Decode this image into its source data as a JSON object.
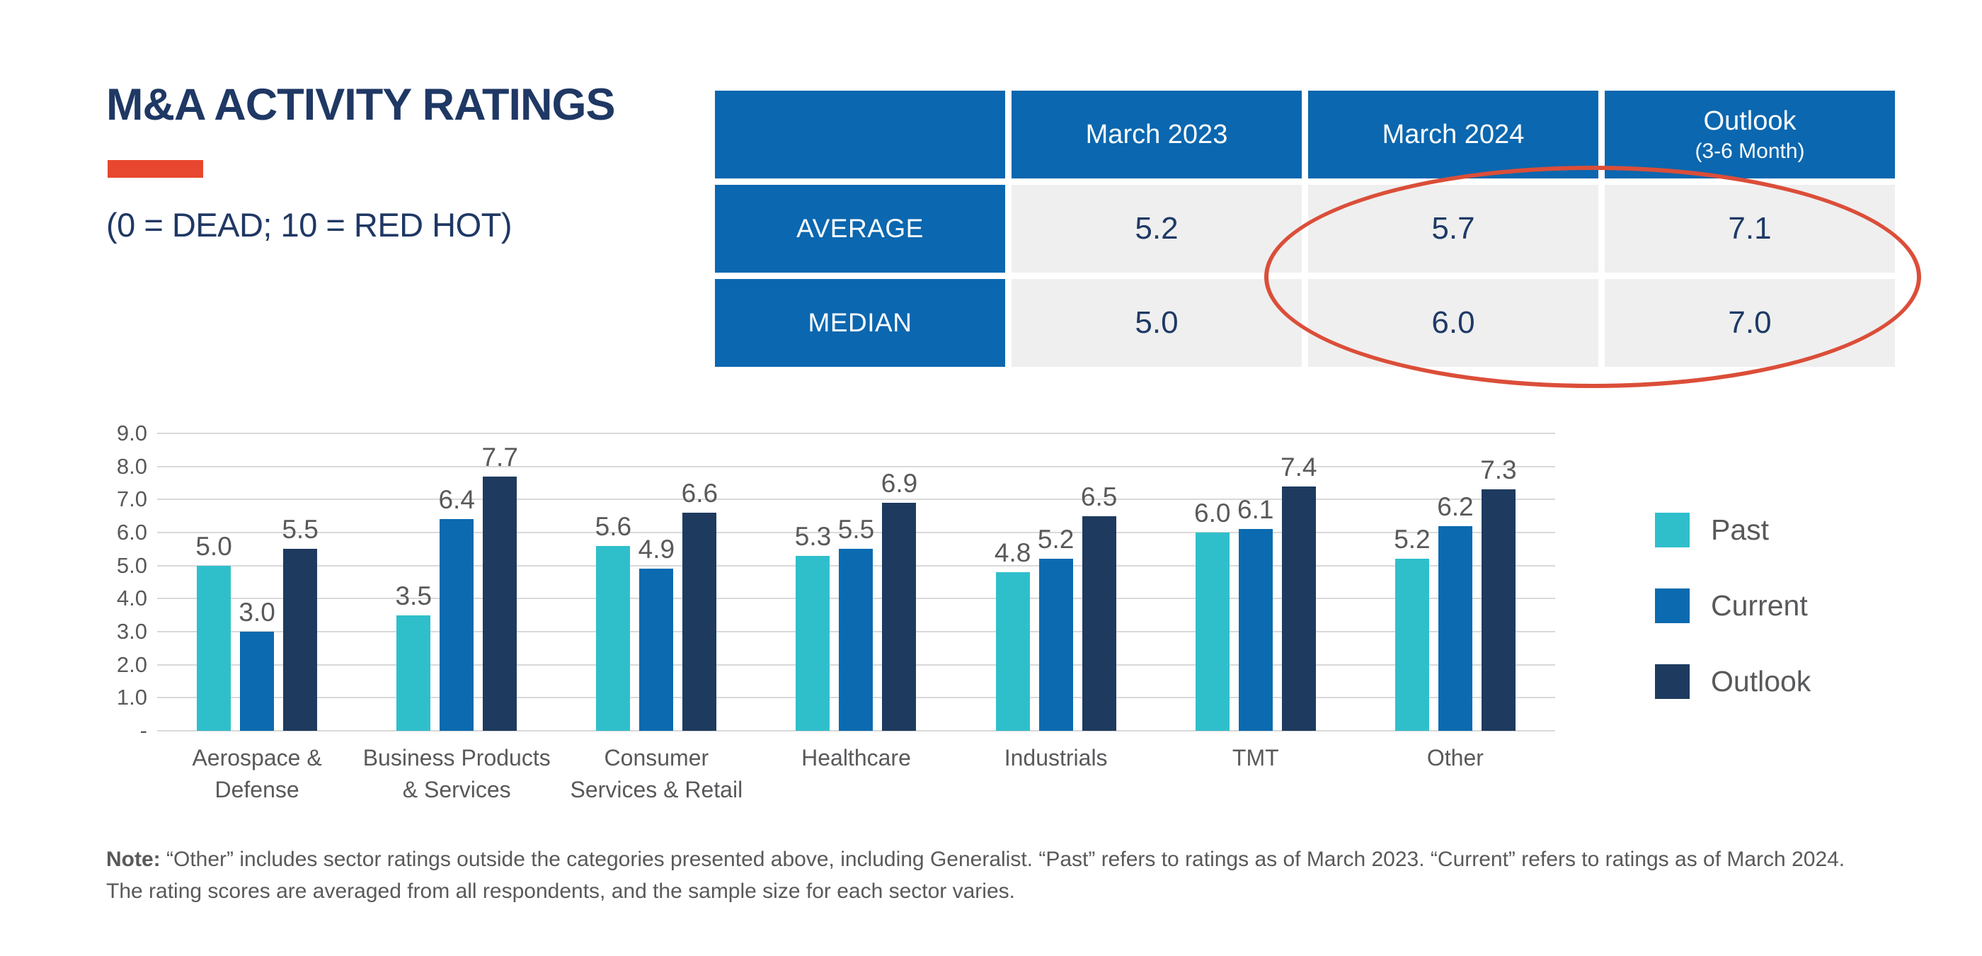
{
  "page": {
    "title": "M&A ACTIVITY RATINGS",
    "subtitle": "(0 = DEAD; 10 = RED HOT)"
  },
  "colors": {
    "title_navy": "#1F3864",
    "accent_red": "#E8472F",
    "ellipse_red": "#DB4E39",
    "table_header_blue": "#0B67AF",
    "table_cell_gray": "#EFEFEF",
    "table_value_navy": "#1E3A66",
    "past_teal": "#2FBFCB",
    "current_blue": "#0B6AB0",
    "outlook_navy": "#1E3A5F",
    "gridline_gray": "#D9D9D9",
    "text_gray": "#58595B"
  },
  "summary_table": {
    "col_headers": {
      "march_2023": "March 2023",
      "march_2024": "March 2024",
      "outlook_main": "Outlook",
      "outlook_sub": "(3-6 Month)"
    },
    "rows": [
      {
        "label": "AVERAGE",
        "values": [
          "5.2",
          "5.7",
          "7.1"
        ]
      },
      {
        "label": "MEDIAN",
        "values": [
          "5.0",
          "6.0",
          "7.0"
        ]
      }
    ]
  },
  "chart_data": {
    "type": "bar",
    "title": "",
    "xlabel": "",
    "ylabel": "",
    "ylim": [
      0,
      9
    ],
    "grid": true,
    "legend_position": "right",
    "y_ticks": [
      "9.0",
      "8.0",
      "7.0",
      "6.0",
      "5.0",
      "4.0",
      "3.0",
      "2.0",
      "1.0",
      "-"
    ],
    "categories": [
      "Aerospace &\nDefense",
      "Business Products\n& Services",
      "Consumer\nServices & Retail",
      "Healthcare",
      "Industrials",
      "TMT",
      "Other"
    ],
    "series": [
      {
        "name": "Past",
        "color": "#2FBFCB",
        "values": [
          5.0,
          3.5,
          5.6,
          5.3,
          4.8,
          6.0,
          5.2
        ]
      },
      {
        "name": "Current",
        "color": "#0B6AB0",
        "values": [
          3.0,
          6.4,
          4.9,
          5.5,
          5.2,
          6.1,
          6.2
        ]
      },
      {
        "name": "Outlook",
        "color": "#1E3A5F",
        "values": [
          5.5,
          7.7,
          6.6,
          6.9,
          6.5,
          7.4,
          7.3
        ]
      }
    ]
  },
  "legend": {
    "items": [
      {
        "label": "Past",
        "color": "#2FBFCB"
      },
      {
        "label": "Current",
        "color": "#0B6AB0"
      },
      {
        "label": "Outlook",
        "color": "#1E3A5F"
      }
    ]
  },
  "note": {
    "label": "Note:",
    "line1": "“Other” includes sector ratings outside the categories presented above, including Generalist. “Past” refers to ratings as of March 2023. “Current” refers to ratings as of March 2024.",
    "line2": "The rating scores are averaged from all respondents, and the sample size for each sector varies."
  }
}
